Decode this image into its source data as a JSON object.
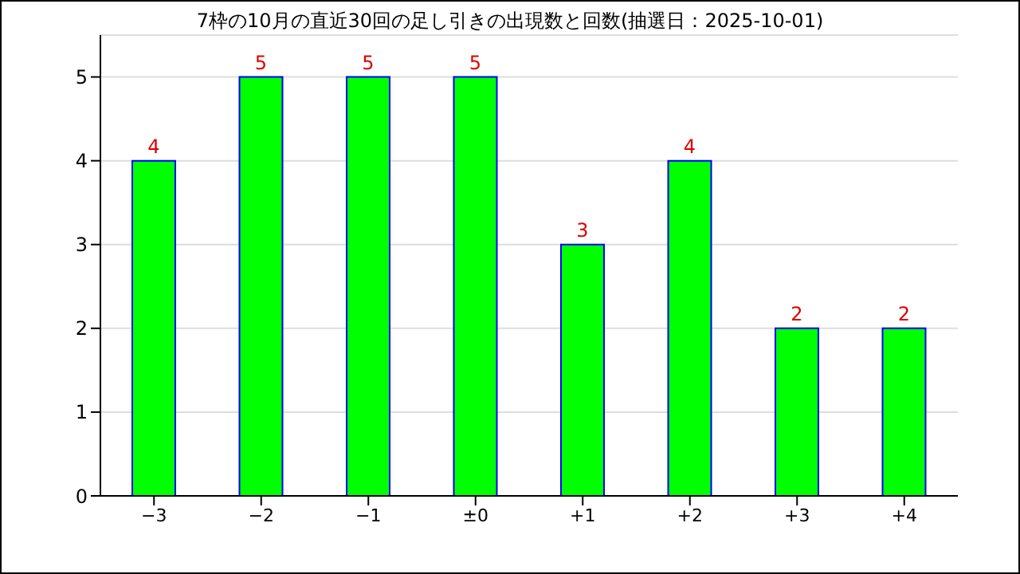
{
  "chart_data": {
    "type": "bar",
    "title": "7枠の10月の直近30回の足し引きの出現数と回数(抽選日：2025-10-01)",
    "categories": [
      "−3",
      "−2",
      "−1",
      "±0",
      "+1",
      "+2",
      "+3",
      "+4"
    ],
    "values": [
      4,
      5,
      5,
      5,
      3,
      4,
      2,
      2
    ],
    "color": "#00ff00",
    "ylim": [
      0,
      5.5
    ],
    "yticks": [
      0,
      1,
      2,
      3,
      4,
      5
    ],
    "grid": "y",
    "data_labels": true
  }
}
